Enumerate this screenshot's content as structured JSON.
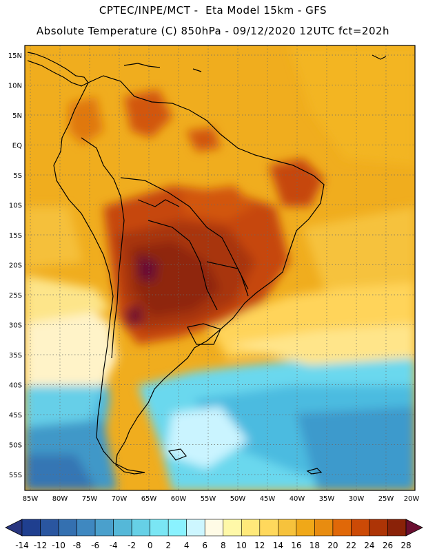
{
  "title": {
    "line1": "CPTEC/INPE/MCT -  Eta Model 15km - GFS",
    "line2": "Absolute Temperature (C) 850hPa - 09/12/2020 12UTC fct=202h"
  },
  "map": {
    "lat_labels": [
      "15N",
      "10N",
      "5N",
      "EQ",
      "5S",
      "10S",
      "15S",
      "20S",
      "25S",
      "30S",
      "35S",
      "40S",
      "45S",
      "50S",
      "55S"
    ],
    "lon_labels": [
      "85W",
      "80W",
      "75W",
      "70W",
      "65W",
      "60W",
      "55W",
      "50W",
      "45W",
      "40W",
      "35W",
      "30W",
      "25W",
      "20W"
    ]
  },
  "colorbar": {
    "labels": [
      "-14",
      "-12",
      "-10",
      "-8",
      "-6",
      "-4",
      "-2",
      "0",
      "2",
      "4",
      "6",
      "8",
      "10",
      "12",
      "14",
      "16",
      "18",
      "20",
      "22",
      "24",
      "26",
      "28"
    ],
    "colors": [
      "#1f3f8f",
      "#2a56a0",
      "#3470b0",
      "#3f88c0",
      "#4aa0cc",
      "#55b8d8",
      "#66d0e6",
      "#7ae6f4",
      "#8af2ff",
      "#cdf6ff",
      "#fffbe6",
      "#fff8a8",
      "#ffe97a",
      "#ffd85c",
      "#f6c23c",
      "#f0a818",
      "#e88c10",
      "#e06808",
      "#cc4a06",
      "#ad3406",
      "#8a2208"
    ],
    "under_color": "#28357f",
    "over_color": "#6a0e30"
  }
}
